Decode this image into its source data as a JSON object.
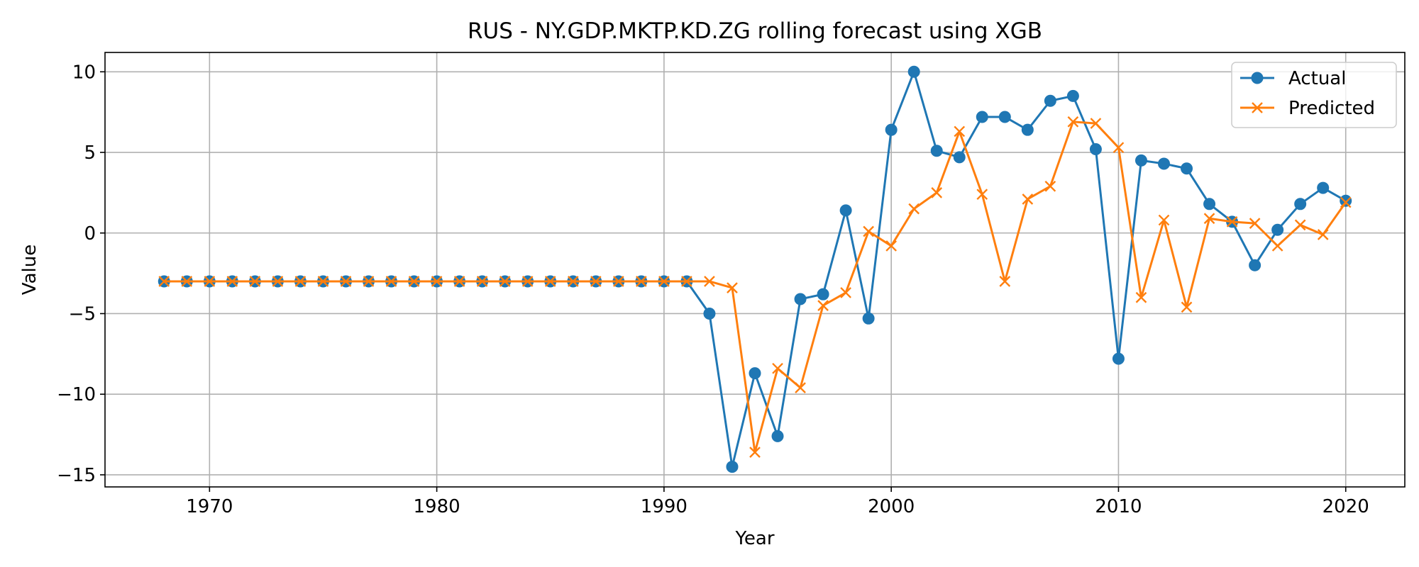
{
  "chart_data": {
    "type": "line",
    "title": "RUS - NY.GDP.MKTP.KD.ZG rolling forecast using XGB",
    "xlabel": "Year",
    "ylabel": "Value",
    "xlim": [
      1965.4,
      2022.6
    ],
    "ylim": [
      -15.75,
      11.2
    ],
    "x_ticks": [
      1970,
      1980,
      1990,
      2000,
      2010,
      2020
    ],
    "y_ticks": [
      -15,
      -10,
      -5,
      0,
      5,
      10
    ],
    "y_tick_labels": [
      "−15",
      "−10",
      "−5",
      "0",
      "5",
      "10"
    ],
    "grid": true,
    "legend_position": "upper right",
    "x": [
      1968,
      1969,
      1970,
      1971,
      1972,
      1973,
      1974,
      1975,
      1976,
      1977,
      1978,
      1979,
      1980,
      1981,
      1982,
      1983,
      1984,
      1985,
      1986,
      1987,
      1988,
      1989,
      1990,
      1991,
      1992,
      1993,
      1994,
      1995,
      1996,
      1997,
      1998,
      1999,
      2000,
      2001,
      2002,
      2003,
      2004,
      2005,
      2006,
      2007,
      2008,
      2009,
      2010,
      2011,
      2012,
      2013,
      2014,
      2015,
      2016,
      2017,
      2018,
      2019,
      2020
    ],
    "series": [
      {
        "name": "Actual",
        "color": "#1f77b4",
        "marker": "circle",
        "values": [
          -3,
          -3,
          -3,
          -3,
          -3,
          -3,
          -3,
          -3,
          -3,
          -3,
          -3,
          -3,
          -3,
          -3,
          -3,
          -3,
          -3,
          -3,
          -3,
          -3,
          -3,
          -3,
          -3,
          -3,
          -5.0,
          -14.5,
          -8.7,
          -12.6,
          -4.1,
          -3.8,
          1.4,
          -5.3,
          6.4,
          10.0,
          5.1,
          4.7,
          7.2,
          7.2,
          6.4,
          8.2,
          8.5,
          5.2,
          -7.8,
          4.5,
          4.3,
          4.0,
          1.8,
          0.7,
          -2.0,
          0.2,
          1.8,
          2.8,
          2.0
        ]
      },
      {
        "name": "Predicted",
        "color": "#ff7f0e",
        "marker": "x",
        "values": [
          -3,
          -3,
          -3,
          -3,
          -3,
          -3,
          -3,
          -3,
          -3,
          -3,
          -3,
          -3,
          -3,
          -3,
          -3,
          -3,
          -3,
          -3,
          -3,
          -3,
          -3,
          -3,
          -3,
          -3,
          -3.0,
          -3.4,
          -13.6,
          -8.4,
          -9.6,
          -4.5,
          -3.7,
          0.1,
          -0.8,
          1.5,
          2.5,
          6.3,
          2.4,
          -3.0,
          2.1,
          2.9,
          6.9,
          6.8,
          5.3,
          -4.0,
          0.8,
          -4.6,
          0.9,
          0.7,
          0.6,
          -0.8,
          0.5,
          -0.1,
          1.9
        ]
      }
    ]
  }
}
